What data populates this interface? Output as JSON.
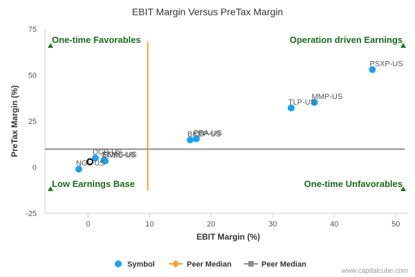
{
  "chart_data": {
    "type": "scatter",
    "title": "EBIT Margin Versus PreTax Margin",
    "xlabel": "EBIT Margin (%)",
    "ylabel": "PreTax Margin (%)",
    "xlim": [
      -7,
      52
    ],
    "ylim": [
      -25,
      75
    ],
    "xticks": [
      "0",
      "10",
      "20",
      "30",
      "40",
      "50"
    ],
    "yticks": [
      "-25",
      "0",
      "25",
      "50",
      "75"
    ],
    "grid": false,
    "legend_position": "bottom",
    "quadrant_labels": {
      "top_left": "One-time Favorables",
      "top_right": "Operation driven Earnings",
      "bottom_left": "Low Earnings Base",
      "bottom_right": "One-time Unfavorables"
    },
    "series": [
      {
        "name": "Symbol",
        "color": "#1aa3f0",
        "points": [
          {
            "label": "PSXP-US",
            "x": 46.2,
            "y": 53.0
          },
          {
            "label": "MMP-US",
            "x": 36.8,
            "y": 35.2
          },
          {
            "label": "TLP-US",
            "x": 33.0,
            "y": 32.2
          },
          {
            "label": "PBA-US",
            "x": 17.6,
            "y": 15.5
          },
          {
            "label": "BKEP-US",
            "x": 16.6,
            "y": 14.8
          },
          {
            "label": "DCP-US",
            "x": 1.2,
            "y": 5.0
          },
          {
            "label": "SEMG-US",
            "x": 2.6,
            "y": 3.8
          },
          {
            "label": "ENBL-US",
            "x": 2.8,
            "y": 3.4
          },
          {
            "label": "NGL-US",
            "x": -1.5,
            "y": -1.0
          }
        ]
      },
      {
        "name": "Peer Median",
        "color": "#f5a623",
        "orientation": "vertical",
        "value": 9.7
      },
      {
        "name": "Peer Median",
        "color": "#8c8c8c",
        "orientation": "horizontal",
        "value": 9.8
      }
    ],
    "highlight_marker": {
      "x": 0.3,
      "y": 3.0
    },
    "colors": {
      "quadrant_text": "#1a6b1a",
      "quadrant_marker": "#1a7a1a",
      "axis_line": "#cccccc"
    }
  },
  "footer": {
    "credit": "www.capitalcube.com"
  }
}
